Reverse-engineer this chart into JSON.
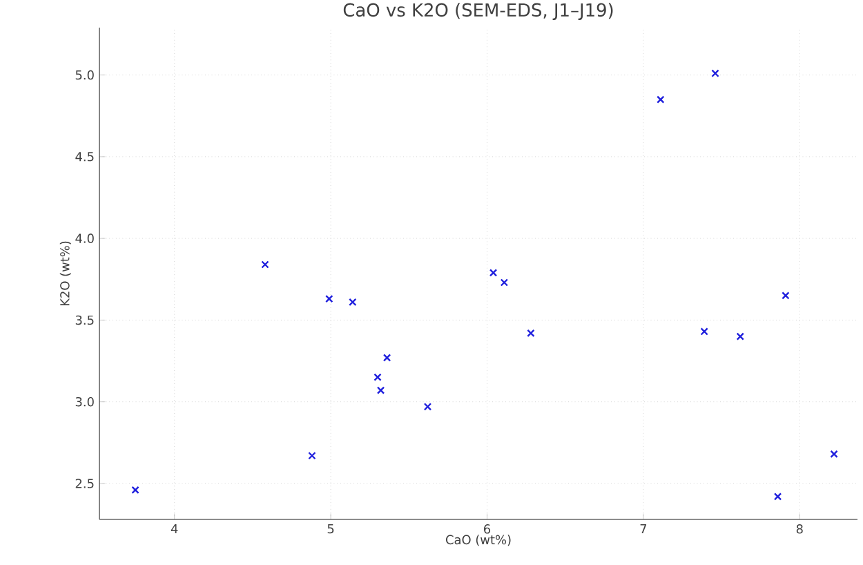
{
  "chart_data": {
    "type": "scatter",
    "title": "CaO vs K2O (SEM-EDS, J1–J19)",
    "xlabel": "CaO (wt%)",
    "ylabel": "K2O (wt%)",
    "xlim": [
      3.52,
      8.37
    ],
    "ylim": [
      2.28,
      5.29
    ],
    "xticks": [
      4,
      5,
      6,
      7,
      8
    ],
    "yticks": [
      2.5,
      {
        "value": 3,
        "label": "3.0"
      },
      3.5,
      {
        "value": 4,
        "label": "4.0"
      },
      4.5,
      {
        "value": 5,
        "label": "5.0"
      }
    ],
    "grid": true,
    "marker": "cross",
    "series": [
      {
        "color": "#1f1fdd",
        "x": [
          7.46,
          7.11,
          4.58,
          4.99,
          5.14,
          6.04,
          6.11,
          6.28,
          7.91,
          7.39,
          7.62,
          8.22,
          7.86,
          5.36,
          5.3,
          5.32,
          5.62,
          4.88,
          3.75
        ],
        "values": [
          5.01,
          4.85,
          3.84,
          3.63,
          3.61,
          3.79,
          3.73,
          3.42,
          3.65,
          3.43,
          3.4,
          2.68,
          2.42,
          3.27,
          3.15,
          3.07,
          2.97,
          2.67,
          2.46
        ]
      }
    ]
  }
}
